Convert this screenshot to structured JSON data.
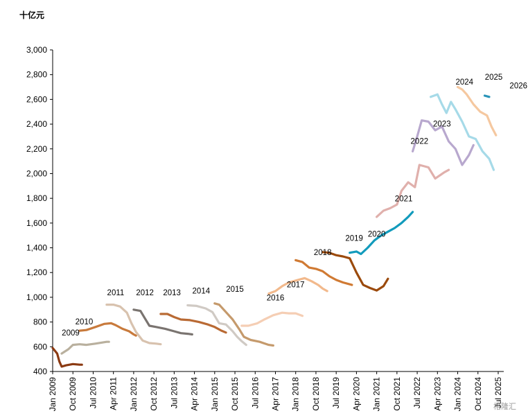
{
  "chart_data": {
    "type": "line",
    "title": "",
    "unit_label": "十亿元",
    "ylim": [
      400,
      3000
    ],
    "y_ticks": [
      "400",
      "600",
      "800",
      "1,000",
      "1,200",
      "1,400",
      "1,600",
      "1,800",
      "2,000",
      "2,200",
      "2,400",
      "2,600",
      "2,800",
      "3,000"
    ],
    "xlim": [
      "2009-01",
      "2025-01"
    ],
    "x_ticks": [
      "Jan 2009",
      "Oct 2009",
      "Jul 2010",
      "Apr 2011",
      "Jan 2012",
      "Oct 2012",
      "Jul 2013",
      "Apr 2014",
      "Jan 2015",
      "Oct 2015",
      "Jul 2016",
      "Apr 2017",
      "Jan 2018",
      "Oct 2018",
      "Jul 2019",
      "Apr 2020",
      "Jan 2021",
      "Oct 2021",
      "Jul 2022",
      "Apr 2023",
      "Jan 2024",
      "Oct 2024",
      "Jul 2025"
    ],
    "grid": false,
    "legend": "none",
    "watermark": "格隆汇",
    "series": [
      {
        "name": "2009",
        "label_at": [
          "2009-09",
          690
        ],
        "color": "#8B3A12",
        "points": [
          [
            "2009-01",
            590
          ],
          [
            "2009-03",
            545
          ],
          [
            "2009-04",
            480
          ],
          [
            "2009-05",
            440
          ],
          [
            "2009-07",
            450
          ],
          [
            "2009-10",
            460
          ],
          [
            "2010-01",
            455
          ],
          [
            "2010-02",
            455
          ]
        ]
      },
      {
        "name": "2010",
        "label_at": [
          "2010-03",
          780
        ],
        "color": "#B9B09E",
        "points": [
          [
            "2009-05",
            545
          ],
          [
            "2009-08",
            580
          ],
          [
            "2009-10",
            615
          ],
          [
            "2010-01",
            620
          ],
          [
            "2010-04",
            615
          ],
          [
            "2010-08",
            625
          ],
          [
            "2011-01",
            640
          ],
          [
            "2011-02",
            640
          ]
        ]
      },
      {
        "name": "2011",
        "label_at": [
          "2011-05",
          1015
        ],
        "color": "#C87A3C",
        "points": [
          [
            "2010-01",
            730
          ],
          [
            "2010-04",
            735
          ],
          [
            "2010-08",
            760
          ],
          [
            "2010-12",
            785
          ],
          [
            "2011-03",
            790
          ],
          [
            "2011-05",
            775
          ],
          [
            "2011-08",
            745
          ],
          [
            "2011-11",
            725
          ],
          [
            "2012-01",
            700
          ],
          [
            "2012-02",
            690
          ]
        ]
      },
      {
        "name": "2012",
        "label_at": [
          "2012-06",
          1015
        ],
        "color": "#D8C2AE",
        "points": [
          [
            "2011-01",
            940
          ],
          [
            "2011-04",
            940
          ],
          [
            "2011-07",
            925
          ],
          [
            "2011-10",
            875
          ],
          [
            "2011-12",
            790
          ],
          [
            "2012-02",
            720
          ],
          [
            "2012-05",
            650
          ],
          [
            "2012-08",
            630
          ],
          [
            "2012-11",
            625
          ],
          [
            "2013-01",
            620
          ]
        ]
      },
      {
        "name": "2013",
        "label_at": [
          "2013-06",
          1015
        ],
        "color": "#7A7470",
        "points": [
          [
            "2012-01",
            900
          ],
          [
            "2012-04",
            890
          ],
          [
            "2012-06",
            830
          ],
          [
            "2012-08",
            770
          ],
          [
            "2012-11",
            760
          ],
          [
            "2013-03",
            745
          ],
          [
            "2013-07",
            725
          ],
          [
            "2013-10",
            710
          ],
          [
            "2014-01",
            705
          ],
          [
            "2014-03",
            700
          ]
        ]
      },
      {
        "name": "2014",
        "label_at": [
          "2014-07",
          1030
        ],
        "color": "#B96A34",
        "points": [
          [
            "2013-01",
            865
          ],
          [
            "2013-04",
            865
          ],
          [
            "2013-07",
            840
          ],
          [
            "2013-10",
            820
          ],
          [
            "2014-02",
            815
          ],
          [
            "2014-06",
            800
          ],
          [
            "2014-10",
            780
          ],
          [
            "2015-01",
            760
          ],
          [
            "2015-04",
            730
          ],
          [
            "2015-06",
            715
          ]
        ]
      },
      {
        "name": "2015",
        "label_at": [
          "2015-10",
          1045
        ],
        "color": "#D0CAC4",
        "points": [
          [
            "2014-01",
            935
          ],
          [
            "2014-05",
            930
          ],
          [
            "2014-09",
            910
          ],
          [
            "2014-12",
            880
          ],
          [
            "2015-03",
            790
          ],
          [
            "2015-06",
            780
          ],
          [
            "2015-09",
            725
          ],
          [
            "2015-11",
            680
          ],
          [
            "2016-01",
            645
          ],
          [
            "2016-03",
            615
          ]
        ]
      },
      {
        "name": "2016",
        "label_at": [
          "2017-04",
          975
        ],
        "color": "#C59A6C",
        "points": [
          [
            "2015-01",
            950
          ],
          [
            "2015-03",
            940
          ],
          [
            "2015-06",
            880
          ],
          [
            "2015-09",
            820
          ],
          [
            "2015-12",
            740
          ],
          [
            "2016-02",
            680
          ],
          [
            "2016-05",
            655
          ],
          [
            "2016-09",
            640
          ],
          [
            "2017-01",
            615
          ],
          [
            "2017-03",
            610
          ]
        ]
      },
      {
        "name": "2017",
        "label_at": [
          "2018-01",
          1080
        ],
        "color": "#F5CEB4",
        "points": [
          [
            "2016-01",
            770
          ],
          [
            "2016-04",
            770
          ],
          [
            "2016-08",
            790
          ],
          [
            "2016-11",
            820
          ],
          [
            "2017-03",
            855
          ],
          [
            "2017-07",
            875
          ],
          [
            "2017-10",
            870
          ],
          [
            "2018-01",
            870
          ],
          [
            "2018-04",
            850
          ]
        ]
      },
      {
        "name": "2018",
        "label_at": [
          "2019-01",
          1340
        ],
        "color": "#F2B98C",
        "points": [
          [
            "2017-01",
            1030
          ],
          [
            "2017-04",
            1050
          ],
          [
            "2017-07",
            1090
          ],
          [
            "2017-10",
            1120
          ],
          [
            "2018-02",
            1140
          ],
          [
            "2018-05",
            1155
          ],
          [
            "2018-08",
            1130
          ],
          [
            "2018-11",
            1100
          ],
          [
            "2019-01",
            1070
          ],
          [
            "2019-03",
            1050
          ]
        ]
      },
      {
        "name": "2019",
        "label_at": [
          "2020-03",
          1455
        ],
        "color": "#D07A33",
        "points": [
          [
            "2018-01",
            1300
          ],
          [
            "2018-04",
            1285
          ],
          [
            "2018-07",
            1240
          ],
          [
            "2018-10",
            1230
          ],
          [
            "2019-01",
            1210
          ],
          [
            "2019-04",
            1170
          ],
          [
            "2019-07",
            1140
          ],
          [
            "2019-10",
            1120
          ],
          [
            "2020-02",
            1100
          ]
        ]
      },
      {
        "name": "2020",
        "label_at": [
          "2021-01",
          1490
        ],
        "color": "#9B4A0C",
        "points": [
          [
            "2019-01",
            1365
          ],
          [
            "2019-04",
            1360
          ],
          [
            "2019-07",
            1340
          ],
          [
            "2019-10",
            1330
          ],
          [
            "2020-01",
            1315
          ],
          [
            "2020-04",
            1200
          ],
          [
            "2020-07",
            1100
          ],
          [
            "2020-10",
            1075
          ],
          [
            "2021-01",
            1055
          ],
          [
            "2021-04",
            1090
          ],
          [
            "2021-06",
            1150
          ]
        ]
      },
      {
        "name": "2021",
        "label_at": [
          "2022-01",
          1775
        ],
        "color": "#129BBC",
        "points": [
          [
            "2020-01",
            1360
          ],
          [
            "2020-04",
            1370
          ],
          [
            "2020-06",
            1350
          ],
          [
            "2020-09",
            1400
          ],
          [
            "2020-12",
            1460
          ],
          [
            "2021-03",
            1500
          ],
          [
            "2021-06",
            1530
          ],
          [
            "2021-09",
            1560
          ],
          [
            "2021-12",
            1600
          ],
          [
            "2022-03",
            1650
          ],
          [
            "2022-05",
            1690
          ]
        ]
      },
      {
        "name": "2022",
        "label_at": [
          "2022-08",
          2240
        ],
        "color": "#E0B0AC",
        "points": [
          [
            "2021-01",
            1650
          ],
          [
            "2021-04",
            1700
          ],
          [
            "2021-07",
            1720
          ],
          [
            "2021-10",
            1750
          ],
          [
            "2021-12",
            1860
          ],
          [
            "2022-03",
            1930
          ],
          [
            "2022-06",
            1890
          ],
          [
            "2022-08",
            2070
          ],
          [
            "2022-12",
            2050
          ],
          [
            "2023-03",
            1960
          ],
          [
            "2023-07",
            2010
          ],
          [
            "2023-09",
            2030
          ]
        ]
      },
      {
        "name": "2023",
        "label_at": [
          "2023-06",
          2380
        ],
        "color": "#B8A8CE",
        "points": [
          [
            "2022-05",
            2180
          ],
          [
            "2022-07",
            2300
          ],
          [
            "2022-09",
            2430
          ],
          [
            "2022-12",
            2420
          ],
          [
            "2023-03",
            2350
          ],
          [
            "2023-06",
            2380
          ],
          [
            "2023-09",
            2260
          ],
          [
            "2023-12",
            2200
          ],
          [
            "2024-03",
            2070
          ],
          [
            "2024-06",
            2150
          ],
          [
            "2024-08",
            2230
          ]
        ]
      },
      {
        "name": "2024",
        "label_at": [
          "2024-04",
          2720
        ],
        "color": "#A6DAE8",
        "points": [
          [
            "2023-01",
            2620
          ],
          [
            "2023-04",
            2640
          ],
          [
            "2023-06",
            2560
          ],
          [
            "2023-08",
            2490
          ],
          [
            "2023-10",
            2580
          ],
          [
            "2023-12",
            2520
          ],
          [
            "2024-03",
            2420
          ],
          [
            "2024-06",
            2300
          ],
          [
            "2024-09",
            2280
          ],
          [
            "2024-12",
            2180
          ],
          [
            "2025-03",
            2120
          ],
          [
            "2025-05",
            2030
          ]
        ]
      },
      {
        "name": "2025",
        "label_at": [
          "2025-05",
          2760
        ],
        "color": "#F5C8A0",
        "points": [
          [
            "2024-01",
            2700
          ],
          [
            "2024-03",
            2680
          ],
          [
            "2024-05",
            2640
          ],
          [
            "2024-08",
            2560
          ],
          [
            "2024-11",
            2500
          ],
          [
            "2025-02",
            2470
          ],
          [
            "2025-04",
            2380
          ],
          [
            "2025-06",
            2310
          ]
        ]
      },
      {
        "name": "2026",
        "label_at": [
          "2026-04",
          2690
        ],
        "color": "#2A94B8",
        "points": [
          [
            "2025-01",
            2630
          ],
          [
            "2025-03",
            2620
          ]
        ]
      }
    ]
  }
}
